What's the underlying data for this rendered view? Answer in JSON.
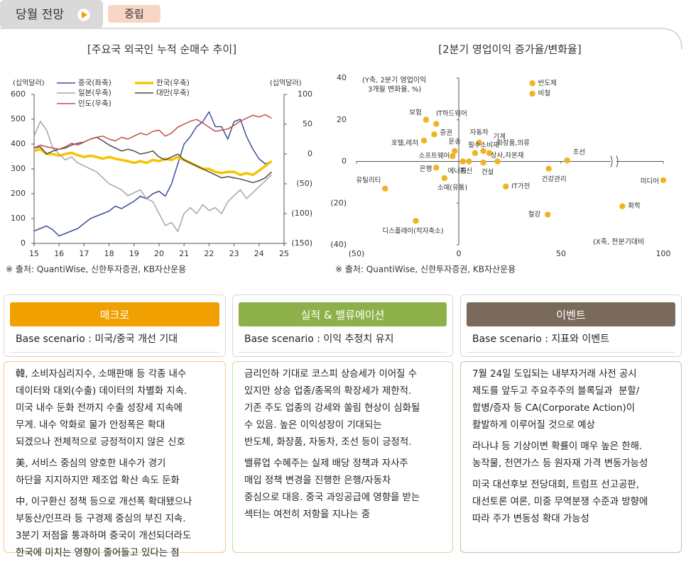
{
  "header": {
    "title": "당월 전망",
    "tag": "중립"
  },
  "chart_data": [
    {
      "type": "line",
      "title": "[주요국 외국인 누적 순매수 추이]",
      "y_label": "(십억달러)",
      "y2_label": "(십억달러)",
      "source": "※ 출처: QuantiWise, 신한투자증권, KB자산운용",
      "x": [
        15,
        15.25,
        15.5,
        15.75,
        16,
        16.25,
        16.5,
        16.75,
        17,
        17.25,
        17.5,
        17.75,
        18,
        18.25,
        18.5,
        18.75,
        19,
        19.25,
        19.5,
        19.75,
        20,
        20.25,
        20.5,
        20.75,
        21,
        21.25,
        21.5,
        21.75,
        22,
        22.25,
        22.5,
        22.75,
        23,
        23.25,
        23.5,
        23.75,
        24,
        24.25,
        24.5
      ],
      "xlim": [
        15,
        25
      ],
      "xticks": [
        15,
        16,
        17,
        18,
        19,
        20,
        21,
        22,
        23,
        24,
        25
      ],
      "ylim": [
        0,
        600
      ],
      "yticks": [
        0,
        100,
        200,
        300,
        400,
        500,
        600
      ],
      "y2lim": [
        -150,
        100
      ],
      "y2ticks": [
        {
          "value": -150,
          "label": "(150)"
        },
        {
          "value": -100,
          "label": "(100)"
        },
        {
          "value": -50,
          "label": "(50)"
        },
        0,
        50,
        100
      ],
      "series": [
        {
          "name": "중국(좌축)",
          "color": "#3d4f9a",
          "values": [
            50,
            60,
            70,
            55,
            30,
            40,
            50,
            60,
            80,
            100,
            110,
            120,
            130,
            150,
            140,
            155,
            170,
            190,
            180,
            200,
            210,
            190,
            240,
            320,
            400,
            430,
            470,
            490,
            530,
            470,
            470,
            420,
            490,
            500,
            430,
            380,
            340,
            320,
            330
          ]
        },
        {
          "name": "한국(우축)",
          "color": "#f5c400",
          "axis": "y2",
          "values": [
            5,
            8,
            0,
            0,
            -3,
            0,
            2,
            -2,
            -5,
            -3,
            -5,
            -8,
            -5,
            -8,
            -10,
            -12,
            -15,
            -12,
            -15,
            -10,
            -12,
            -8,
            -10,
            -5,
            -10,
            -15,
            -20,
            -25,
            -25,
            -30,
            -32,
            -30,
            -30,
            -35,
            -32,
            -35,
            -28,
            -20,
            -12
          ]
        },
        {
          "name": "일본(우축)",
          "color": "#a6a6a6",
          "axis": "y2",
          "values": [
            30,
            55,
            40,
            10,
            0,
            -10,
            -5,
            -15,
            -20,
            -25,
            -30,
            -40,
            -50,
            -55,
            -60,
            -70,
            -65,
            -60,
            -75,
            -80,
            -100,
            -120,
            -115,
            -130,
            -100,
            -90,
            -100,
            -85,
            -95,
            -90,
            -100,
            -80,
            -70,
            -60,
            -75,
            -65,
            -55,
            -45,
            -35
          ]
        },
        {
          "name": "대만(우축)",
          "color": "#4a4a4a",
          "axis": "y2",
          "values": [
            10,
            12,
            0,
            5,
            8,
            10,
            15,
            18,
            20,
            25,
            28,
            22,
            15,
            10,
            5,
            8,
            5,
            0,
            2,
            5,
            -5,
            -10,
            -5,
            0,
            -10,
            -15,
            -20,
            -25,
            -30,
            -35,
            -40,
            -38,
            -40,
            -42,
            -45,
            -48,
            -45,
            -40,
            -30
          ]
        },
        {
          "name": "인도(우축)",
          "color": "#c0504d",
          "axis": "y2",
          "values": [
            10,
            15,
            12,
            10,
            8,
            12,
            18,
            15,
            20,
            25,
            28,
            30,
            25,
            22,
            28,
            25,
            30,
            35,
            32,
            38,
            40,
            30,
            35,
            45,
            50,
            55,
            58,
            52,
            45,
            38,
            40,
            42,
            48,
            55,
            60,
            65,
            62,
            66,
            60
          ]
        }
      ]
    },
    {
      "type": "scatter",
      "title": "[2분기 영업이익 증가율/변화율]",
      "y_label": [
        "(Y축, 2분기 영업이익",
        "3개월 변화율, %)"
      ],
      "x_label": "(X축, 전분기대비",
      "source": "※ 출처: QuantiWise, 신한투자증권, KB자산운용",
      "color": "#f0b323",
      "xlim": [
        -50,
        100
      ],
      "xticks": [
        {
          "value": -50,
          "label": "(50)"
        },
        0,
        50,
        100
      ],
      "ylim": [
        -40,
        40
      ],
      "yticks": [
        {
          "value": -40,
          "label": "(40)"
        },
        {
          "value": -20,
          "label": "(20)"
        },
        0,
        20,
        40
      ],
      "labels": [
        "반도체",
        "비철",
        "보험",
        "IT하드웨어",
        "증권",
        "호텔,레저",
        "운송",
        "소프트웨어",
        "자동차",
        "기계",
        "필수소비재",
        "화장품,의류",
        "통신",
        "에너지",
        "건설",
        "상사,자본재",
        "조선",
        "은행",
        "소매(유통)",
        "유틸리티",
        "IT가전",
        "건강관리",
        "미디어",
        "화학",
        "철강",
        "디스플레이(적자축소)"
      ],
      "x": [
        36,
        36,
        -16,
        -11,
        -12,
        -17,
        -2,
        -3,
        10,
        12,
        8,
        15,
        5,
        2,
        12,
        19,
        53,
        -11,
        -7,
        -36,
        23,
        44,
        100,
        80,
        43.5,
        -21
      ],
      "values": [
        37.5,
        32.5,
        20,
        18,
        13,
        10,
        5,
        2.5,
        9,
        5,
        4,
        4,
        0,
        0,
        -0.5,
        0,
        0.5,
        -3,
        -8,
        -13,
        -12,
        -3.5,
        -9,
        -21.5,
        -25.5,
        -28.5
      ]
    }
  ],
  "panels": [
    {
      "title": "매크로",
      "base": "Base scenario : 미국/중국 개선 기대",
      "paragraphs": [
        [
          "韓, 소비자심리지수, 소매판매 등 각종 내수",
          "데이터와 대외(수출) 데이터의 차별화 지속.",
          "미국 내수 둔화 전까지 수출 성장세 지속에",
          "무게. 내수 악화로 물가 안정폭은 확대",
          "되겠으나 전체적으로 긍정적이지 않은 신호"
        ],
        [
          "美, 서비스 중심의 양호한 내수가 경기",
          "하단을 지지하지만 제조업 확산 속도 둔화"
        ],
        [
          "中, 이구환신 정책 등으로 개선폭 확대됐으나",
          "부동산/인프라 등 구경제 중심의 부진 지속.",
          "3분기 저점을 통과하며 중국이 개선되더라도",
          "한국에 미치는 영향이 줄어들고 있다는 점"
        ]
      ]
    },
    {
      "title": "실적 & 밸류에이션",
      "base": "Base scenario : 이익 추정치 유지",
      "paragraphs": [
        [
          "금리인하 기대로 코스피 상승세가 이어질 수",
          "있지만 상승 업종/종목의 확장세가 제한적.",
          "기존 주도 업종의 강세와 쏠림 현상이 심화될",
          "수 있음. 높은 이익성장이 기대되는",
          "반도체, 화장품, 자동차, 조선 등이 긍정적."
        ],
        [
          "밸류업 수혜주는 실제 배당 정책과 자사주",
          "매입 정책 변경을 진행한 은행/자동차",
          "중심으로 대응. 중국 과잉공급에 영향을 받는",
          "섹터는 여전히 저항을 지나는 중"
        ]
      ]
    },
    {
      "title": "이벤트",
      "base": "Base scenario : 지표와 이벤트",
      "paragraphs": [
        [
          "7월 24일 도입되는 내부자거래 사전 공시",
          "제도를 앞두고 주요주주의 블록딜과  분할/",
          "합병/증자 등 CA(Corporate Action)이",
          "활발하게 이루어질 것으로 예상"
        ],
        [
          "라나냐 등 기상이변 확률이 매우 높은 한해.",
          "농작물, 천연가스 등 원자재 가격 변동가능성"
        ],
        [
          "미국 대선후보 전당대회, 트럼프 선고공판,",
          "대선토론 여론, 미중 무역분쟁 수준과 방향에",
          "따라 주가 변동성 확대 가능성"
        ]
      ]
    }
  ]
}
